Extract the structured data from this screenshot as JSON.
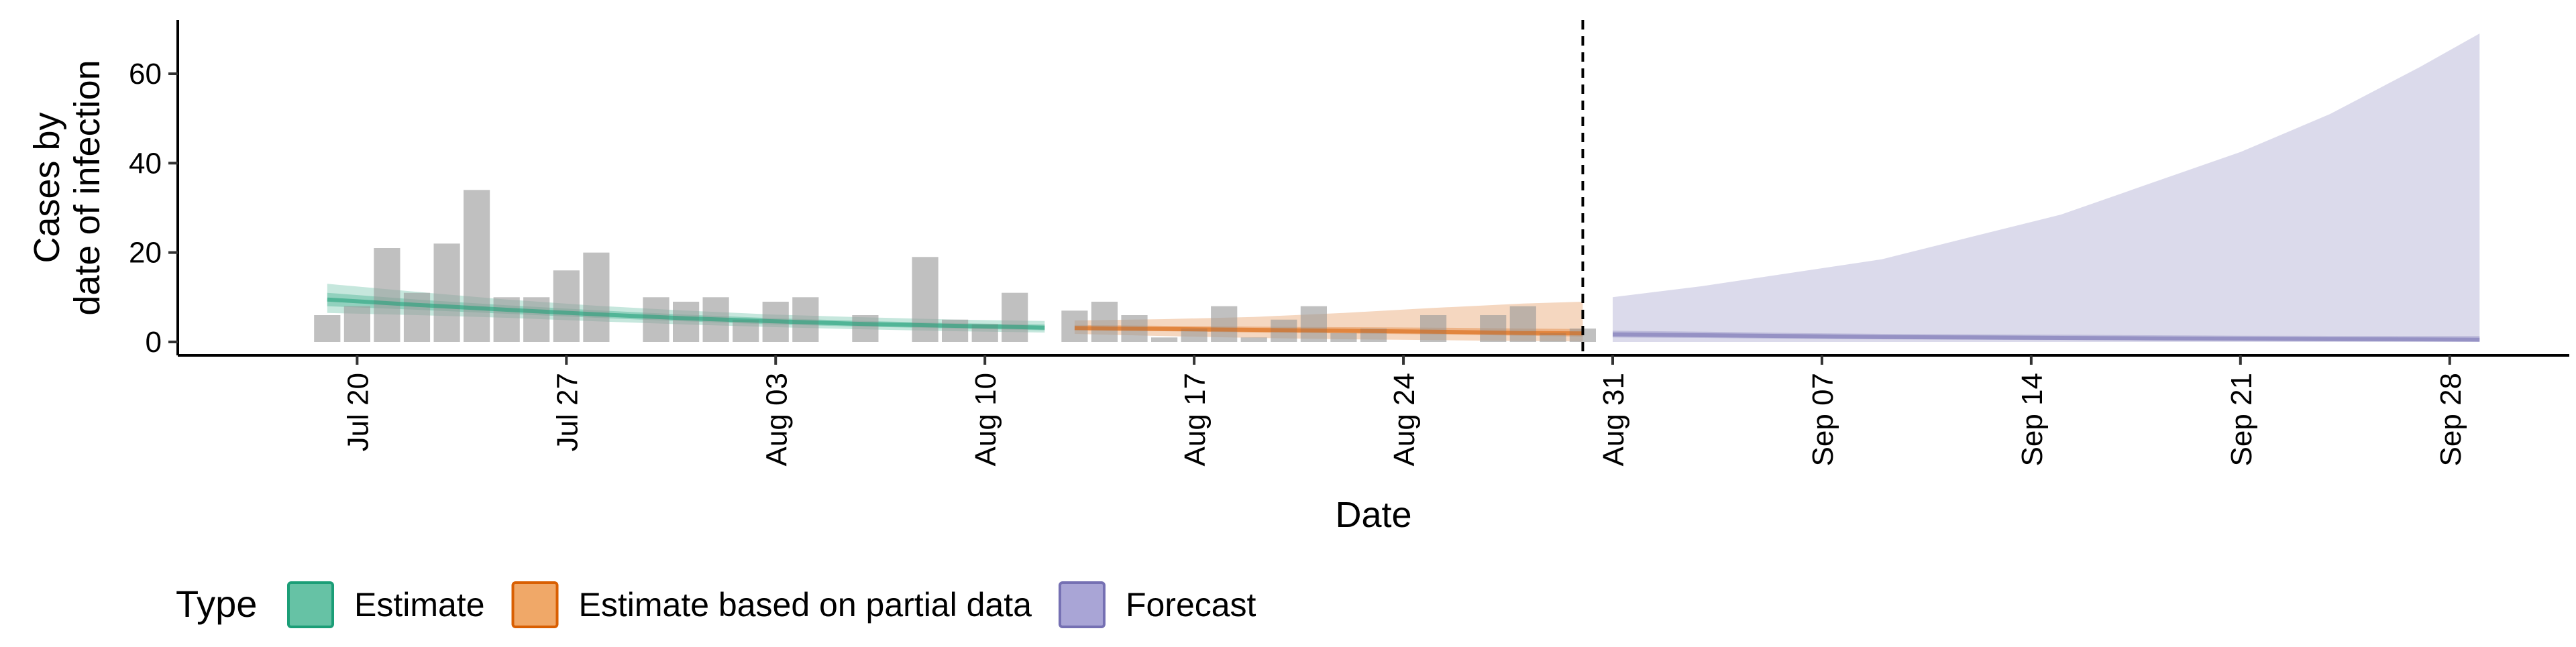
{
  "chart_data": {
    "type": "area",
    "xlabel": "Date",
    "ylabel": [
      "Cases by",
      "date of infection"
    ],
    "ylim": [
      -3,
      72
    ],
    "xlim": [
      "2020-07-14",
      "2020-10-02"
    ],
    "yticks": [
      0,
      20,
      40,
      60
    ],
    "xticks": [
      {
        "date": "2020-07-20",
        "label": "Jul 20"
      },
      {
        "date": "2020-07-27",
        "label": "Jul 27"
      },
      {
        "date": "2020-08-03",
        "label": "Aug 03"
      },
      {
        "date": "2020-08-10",
        "label": "Aug 10"
      },
      {
        "date": "2020-08-17",
        "label": "Aug 17"
      },
      {
        "date": "2020-08-24",
        "label": "Aug 24"
      },
      {
        "date": "2020-08-31",
        "label": "Aug 31"
      },
      {
        "date": "2020-09-07",
        "label": "Sep 07"
      },
      {
        "date": "2020-09-14",
        "label": "Sep 14"
      },
      {
        "date": "2020-09-21",
        "label": "Sep 21"
      },
      {
        "date": "2020-09-28",
        "label": "Sep 28"
      }
    ],
    "grid": false,
    "legend": {
      "title": "Type",
      "position": "bottom",
      "entries": [
        {
          "label": "Estimate",
          "fill": "#66c2a5",
          "stroke": "#1b9e77"
        },
        {
          "label": "Estimate based on partial data",
          "fill": "#f0a868",
          "stroke": "#d95f02"
        },
        {
          "label": "Forecast",
          "fill": "#a9a5d6",
          "stroke": "#7570b3"
        }
      ]
    },
    "cutoff_date": "2020-08-30",
    "reported_cases": {
      "color": "#999999",
      "dates": [
        "2020-07-19",
        "2020-07-20",
        "2020-07-21",
        "2020-07-22",
        "2020-07-23",
        "2020-07-24",
        "2020-07-25",
        "2020-07-26",
        "2020-07-27",
        "2020-07-28",
        "2020-07-29",
        "2020-07-30",
        "2020-07-31",
        "2020-08-01",
        "2020-08-02",
        "2020-08-03",
        "2020-08-04",
        "2020-08-05",
        "2020-08-06",
        "2020-08-07",
        "2020-08-08",
        "2020-08-09",
        "2020-08-10",
        "2020-08-11",
        "2020-08-12",
        "2020-08-13",
        "2020-08-14",
        "2020-08-15",
        "2020-08-16",
        "2020-08-17",
        "2020-08-18",
        "2020-08-19",
        "2020-08-20",
        "2020-08-21",
        "2020-08-22",
        "2020-08-23",
        "2020-08-24",
        "2020-08-25",
        "2020-08-26",
        "2020-08-27",
        "2020-08-28",
        "2020-08-29",
        "2020-08-30"
      ],
      "values": [
        6,
        8,
        21,
        11,
        22,
        34,
        10,
        10,
        16,
        20,
        0,
        10,
        9,
        10,
        5,
        9,
        10,
        0,
        6,
        0,
        19,
        5,
        4,
        11,
        0,
        7,
        9,
        6,
        1,
        3,
        8,
        1,
        5,
        8,
        2,
        3,
        0,
        6,
        0,
        6,
        8,
        2,
        3
      ]
    },
    "series": [
      {
        "name": "Estimate",
        "fill": "#1b9e77",
        "dates": [
          "2020-07-19",
          "2020-07-22",
          "2020-07-25",
          "2020-07-28",
          "2020-07-31",
          "2020-08-03",
          "2020-08-06",
          "2020-08-09",
          "2020-08-12"
        ],
        "median": [
          9.5,
          8.3,
          7.2,
          6.2,
          5.3,
          4.6,
          4.0,
          3.6,
          3.2
        ],
        "inner": [
          [
            8.0,
            11.0
          ],
          [
            7.2,
            9.5
          ],
          [
            6.3,
            8.2
          ],
          [
            5.4,
            7.1
          ],
          [
            4.6,
            6.1
          ],
          [
            3.9,
            5.3
          ],
          [
            3.4,
            4.7
          ],
          [
            3.0,
            4.2
          ],
          [
            2.6,
            3.9
          ]
        ],
        "outer": [
          [
            6.5,
            13.0
          ],
          [
            6.0,
            11.2
          ],
          [
            5.4,
            9.5
          ],
          [
            4.6,
            8.1
          ],
          [
            3.9,
            7.0
          ],
          [
            3.3,
            6.1
          ],
          [
            2.8,
            5.5
          ],
          [
            2.4,
            5.0
          ],
          [
            2.1,
            4.7
          ]
        ]
      },
      {
        "name": "Estimate based on partial data",
        "fill": "#d95f02",
        "dates": [
          "2020-08-13",
          "2020-08-16",
          "2020-08-19",
          "2020-08-22",
          "2020-08-25",
          "2020-08-28",
          "2020-08-30"
        ],
        "median": [
          3.1,
          2.9,
          2.7,
          2.5,
          2.3,
          2.0,
          1.9
        ],
        "inner": [
          [
            2.6,
            3.8
          ],
          [
            2.4,
            3.6
          ],
          [
            2.1,
            3.4
          ],
          [
            1.9,
            3.3
          ],
          [
            1.7,
            3.2
          ],
          [
            1.4,
            3.0
          ],
          [
            1.2,
            2.9
          ]
        ],
        "outer": [
          [
            1.8,
            4.8
          ],
          [
            1.3,
            5.1
          ],
          [
            0.9,
            5.6
          ],
          [
            0.6,
            6.5
          ],
          [
            0.4,
            7.6
          ],
          [
            0.2,
            8.6
          ],
          [
            0.1,
            9.0
          ]
        ]
      },
      {
        "name": "Forecast",
        "fill": "#7570b3",
        "dates": [
          "2020-08-31",
          "2020-09-03",
          "2020-09-06",
          "2020-09-09",
          "2020-09-12",
          "2020-09-15",
          "2020-09-18",
          "2020-09-21",
          "2020-09-24",
          "2020-09-27",
          "2020-09-29"
        ],
        "median": [
          1.7,
          1.5,
          1.3,
          1.1,
          1.0,
          0.9,
          0.8,
          0.7,
          0.6,
          0.55,
          0.5
        ],
        "inner": [
          [
            1.0,
            2.5
          ],
          [
            0.9,
            2.3
          ],
          [
            0.7,
            2.0
          ],
          [
            0.6,
            1.8
          ],
          [
            0.5,
            1.7
          ],
          [
            0.4,
            1.6
          ],
          [
            0.35,
            1.5
          ],
          [
            0.3,
            1.4
          ],
          [
            0.25,
            1.35
          ],
          [
            0.2,
            1.3
          ],
          [
            0.2,
            1.3
          ]
        ],
        "outer": [
          [
            0.0,
            10.0
          ],
          [
            0.0,
            12.5
          ],
          [
            0.0,
            15.5
          ],
          [
            0.0,
            18.5
          ],
          [
            0.0,
            23.5
          ],
          [
            0.0,
            28.5
          ],
          [
            0.0,
            35.5
          ],
          [
            0.0,
            42.5
          ],
          [
            0.0,
            51.0
          ],
          [
            0.0,
            61.5
          ],
          [
            0.0,
            69.0
          ]
        ]
      }
    ]
  }
}
